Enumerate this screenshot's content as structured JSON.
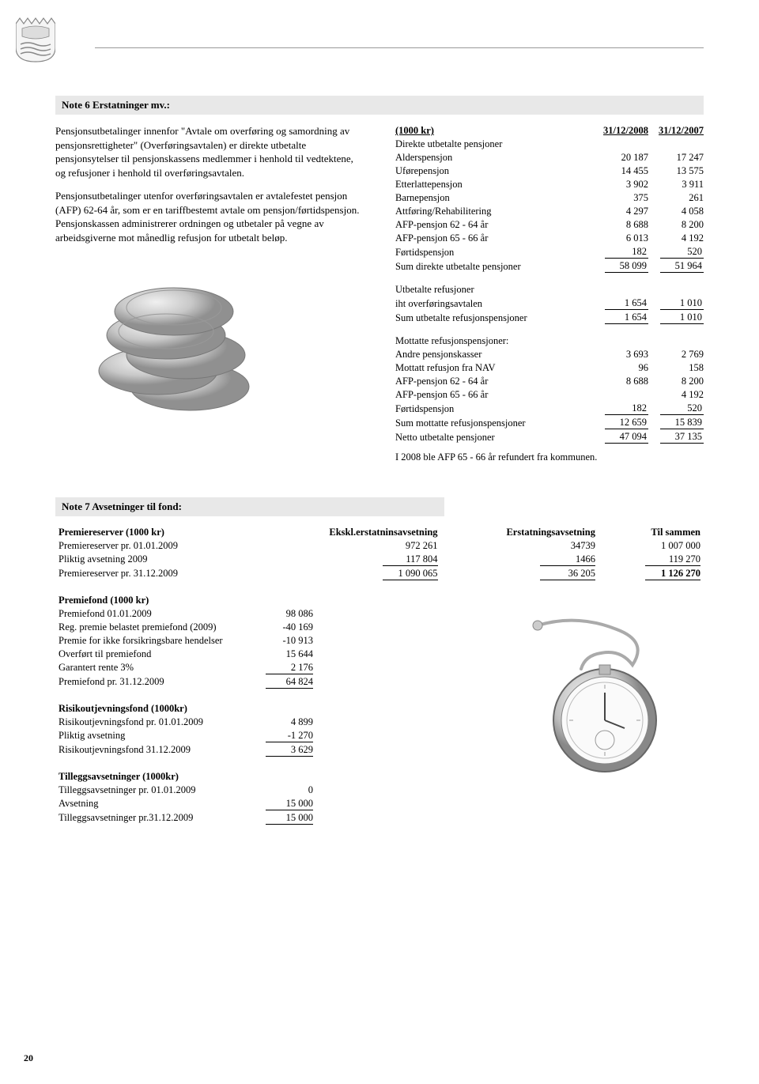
{
  "page_number": "20",
  "note6": {
    "title": "Note 6 Erstatninger mv.:",
    "para1": "Pensjonsutbetalinger innenfor \"Avtale om overføring og samordning av pensjonsrettigheter\" (Overføringsavtalen) er direkte utbetalte pensjonsytelser til pensjonskassens medlemmer i henhold til vedtektene, og refusjoner i henhold til overføringsavtalen.",
    "para2": "Pensjonsutbetalinger utenfor overføringsavtalen er avtalefestet pensjon (AFP) 62-64 år, som er en tariffbestemt avtale om pensjon/førtidspensjon. Pensjonskassen administrerer ordningen og utbetaler på vegne av arbeidsgiverne mot månedlig refusjon for utbetalt beløp.",
    "table_header": {
      "c0": "(1000 kr)",
      "c1": "31/12/2008",
      "c2": "31/12/2007"
    },
    "section_direkte": "Direkte utbetalte pensjoner",
    "rows_direkte": [
      {
        "label": "Alderspensjon",
        "v1": "20 187",
        "v2": "17 247"
      },
      {
        "label": "Uførepensjon",
        "v1": "14 455",
        "v2": "13 575"
      },
      {
        "label": "Etterlattepensjon",
        "v1": "3 902",
        "v2": "3 911"
      },
      {
        "label": "Barnepensjon",
        "v1": "375",
        "v2": "261"
      },
      {
        "label": "Attføring/Rehabilitering",
        "v1": "4 297",
        "v2": "4 058"
      },
      {
        "label": "AFP-pensjon 62 - 64 år",
        "v1": "8 688",
        "v2": "8 200"
      },
      {
        "label": "AFP-pensjon 65 - 66 år",
        "v1": "6 013",
        "v2": "4 192"
      },
      {
        "label": "Førtidspensjon",
        "v1": "182",
        "v2": "520",
        "underline": true
      }
    ],
    "sum_direkte": {
      "label": "Sum direkte utbetalte pensjoner",
      "v1": "58 099",
      "v2": "51 964"
    },
    "section_utbetalt": "Utbetalte refusjoner",
    "row_utbetalt": {
      "label": "iht overføringsavtalen",
      "v1": "1 654",
      "v2": "1 010"
    },
    "sum_utbetalt": {
      "label": "Sum utbetalte refusjonspensjoner",
      "v1": "1 654",
      "v2": "1 010"
    },
    "section_mottatte": "Mottatte refusjonspensjoner:",
    "rows_mottatte": [
      {
        "label": "Andre pensjonskasser",
        "v1": "3 693",
        "v2": "2 769"
      },
      {
        "label": "Mottatt refusjon fra NAV",
        "v1": "96",
        "v2": "158"
      },
      {
        "label": "AFP-pensjon 62 - 64 år",
        "v1": "8 688",
        "v2": "8 200"
      },
      {
        "label": "AFP-pensjon 65 - 66 år",
        "v1": "",
        "v2": "4 192"
      },
      {
        "label": "Førtidspensjon",
        "v1": "182",
        "v2": "520",
        "underline": true
      }
    ],
    "sum_mottatte": {
      "label": "Sum mottatte refusjonspensjoner",
      "v1": "12 659",
      "v2": "15 839"
    },
    "netto": {
      "label": "Netto utbetalte pensjoner",
      "v1": "47 094",
      "v2": "37 135"
    },
    "note_text": "I 2008 ble AFP 65 - 66 år refundert fra kommunen."
  },
  "note7": {
    "title": "Note 7 Avsetninger til fond:",
    "premiereserver": {
      "header": {
        "c0": "Premiereserver (1000 kr)",
        "c1": "Ekskl.erstatninsavsetning",
        "c2": "Erstatningsavsetning",
        "c3": "Til sammen"
      },
      "rows": [
        {
          "label": "Premiereserver pr. 01.01.2009",
          "v1": "972 261",
          "v2": "34739",
          "v3": "1 007 000"
        },
        {
          "label": "Pliktig avsetning 2009",
          "v1": "117 804",
          "v2": "1466",
          "v3": "119 270",
          "underline": true
        }
      ],
      "sum": {
        "label": "Premiereserver pr. 31.12.2009",
        "v1": "1 090 065",
        "v2": "36 205",
        "v3": "1 126 270"
      }
    },
    "premiefond": {
      "header": "Premiefond (1000 kr)",
      "rows": [
        {
          "label": "Premiefond 01.01.2009",
          "v": "98 086"
        },
        {
          "label": "Reg. premie belastet premiefond (2009)",
          "v": "-40 169"
        },
        {
          "label": "Premie for ikke forsikringsbare hendelser",
          "v": "-10 913"
        },
        {
          "label": "Overført til premiefond",
          "v": "15 644"
        },
        {
          "label": "Garantert rente 3%",
          "v": "2 176",
          "underline": true
        }
      ],
      "sum": {
        "label": "Premiefond pr. 31.12.2009",
        "v": "64 824"
      }
    },
    "risiko": {
      "header": "Risikoutjevningsfond (1000kr)",
      "rows": [
        {
          "label": "Risikoutjevningsfond pr. 01.01.2009",
          "v": "4 899"
        },
        {
          "label": "Pliktig avsetning",
          "v": "-1 270",
          "underline": true
        }
      ],
      "sum": {
        "label": "Risikoutjevningsfond 31.12.2009",
        "v": "3 629"
      }
    },
    "tillegg": {
      "header": "Tilleggsavsetninger (1000kr)",
      "rows": [
        {
          "label": "Tilleggsavsetninger pr. 01.01.2009",
          "v": "0"
        },
        {
          "label": "Avsetning",
          "v": "15 000",
          "underline": true
        }
      ],
      "sum": {
        "label": "Tilleggsavsetninger pr.31.12.2009",
        "v": "15 000"
      }
    }
  }
}
